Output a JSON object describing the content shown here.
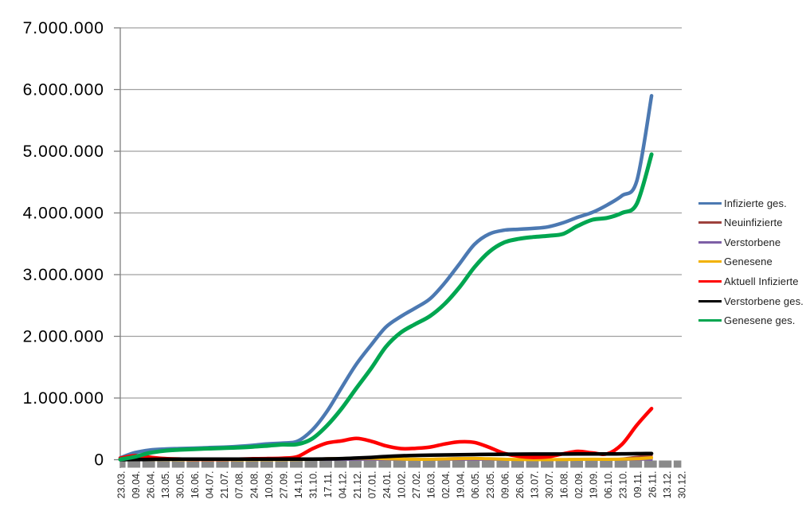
{
  "chart_data": {
    "type": "line",
    "title": "",
    "grid": true,
    "legend_position": "right",
    "ylim": [
      0,
      7000000
    ],
    "y_axis": {
      "labels": [
        "0",
        "1.000.000",
        "2.000.000",
        "3.000.000",
        "4.000.000",
        "5.000.000",
        "6.000.000",
        "7.000.000"
      ]
    },
    "categories": [
      "23.03.",
      "09.04.",
      "26.04.",
      "13.05.",
      "30.05.",
      "16.06.",
      "04.07.",
      "21.07.",
      "07.08.",
      "24.08.",
      "10.09.",
      "27.09.",
      "14.10.",
      "31.10.",
      "17.11.",
      "04.12.",
      "21.12.",
      "07.01.",
      "24.01.",
      "10.02.",
      "27.02.",
      "16.03.",
      "02.04.",
      "19.04.",
      "06.05.",
      "23.05.",
      "09.06.",
      "26.06.",
      "13.07.",
      "30.07.",
      "16.08.",
      "02.09.",
      "19.09.",
      "06.10.",
      "23.10.",
      "09.11.",
      "26.11.",
      "13.12.",
      "30.12."
    ],
    "series": [
      {
        "name": "Infizierte ges.",
        "color": "#4C79B2",
        "width": 4.5,
        "values": [
          31000,
          115000,
          157000,
          173000,
          181000,
          187000,
          196000,
          203000,
          215000,
          234000,
          257000,
          270000,
          300000,
          480000,
          780000,
          1170000,
          1550000,
          1860000,
          2150000,
          2320000,
          2460000,
          2610000,
          2870000,
          3180000,
          3490000,
          3660000,
          3720000,
          3735000,
          3750000,
          3775000,
          3840000,
          3930000,
          4010000,
          4130000,
          4280000,
          4520000,
          5900000,
          null,
          null
        ]
      },
      {
        "name": "Neuinfizierte",
        "color": "#9E413C",
        "width": 3,
        "values": [
          4000,
          4800,
          1800,
          900,
          500,
          350,
          400,
          550,
          1100,
          1500,
          1600,
          2100,
          5500,
          16000,
          21000,
          23000,
          26000,
          20000,
          14000,
          8500,
          8000,
          12000,
          20000,
          24000,
          18000,
          7500,
          3000,
          1200,
          1600,
          2600,
          5500,
          10500,
          8500,
          8000,
          17000,
          45000,
          66000,
          null,
          null
        ]
      },
      {
        "name": "Verstorbene",
        "color": "#7D5FA6",
        "width": 3,
        "values": [
          60,
          180,
          210,
          110,
          60,
          30,
          15,
          10,
          10,
          10,
          10,
          20,
          30,
          90,
          250,
          450,
          750,
          900,
          750,
          550,
          380,
          250,
          200,
          250,
          250,
          180,
          100,
          70,
          35,
          20,
          25,
          55,
          65,
          70,
          90,
          200,
          350,
          null,
          null
        ]
      },
      {
        "name": "Genesene",
        "color": "#F2B200",
        "width": 4,
        "values": [
          800,
          3200,
          3800,
          2000,
          900,
          450,
          350,
          350,
          600,
          900,
          1100,
          1500,
          2600,
          6500,
          14000,
          20000,
          23000,
          22000,
          17000,
          11000,
          7500,
          8000,
          13000,
          18000,
          21000,
          15000,
          8000,
          3200,
          1600,
          1900,
          3600,
          6500,
          8000,
          6500,
          9000,
          16000,
          32000,
          null,
          null
        ]
      },
      {
        "name": "Aktuell Infizierte",
        "color": "#FF0000",
        "width": 4.5,
        "values": [
          25000,
          66000,
          40000,
          19000,
          11000,
          7000,
          6000,
          7000,
          10000,
          15000,
          19000,
          25000,
          50000,
          175000,
          270000,
          305000,
          345000,
          300000,
          225000,
          180000,
          185000,
          205000,
          255000,
          290000,
          280000,
          200000,
          105000,
          55000,
          38000,
          48000,
          95000,
          135000,
          110000,
          95000,
          250000,
          560000,
          830000,
          null,
          null
        ]
      },
      {
        "name": "Verstorbene ges.",
        "color": "#000000",
        "width": 4.5,
        "values": [
          200,
          2200,
          5800,
          7800,
          8600,
          8900,
          9000,
          9100,
          9200,
          9300,
          9400,
          9500,
          9700,
          10400,
          13000,
          18000,
          27000,
          38000,
          52000,
          63000,
          70000,
          74000,
          77000,
          81000,
          84000,
          87000,
          89500,
          90500,
          91300,
          91700,
          92000,
          92500,
          93200,
          94100,
          95400,
          97500,
          101000,
          null,
          null
        ]
      },
      {
        "name": "Genesene ges.",
        "color": "#00A650",
        "width": 5,
        "values": [
          4000,
          48000,
          110000,
          144000,
          161000,
          171000,
          181000,
          189000,
          198000,
          210000,
          226000,
          245000,
          250000,
          340000,
          550000,
          830000,
          1160000,
          1480000,
          1830000,
          2060000,
          2200000,
          2330000,
          2530000,
          2800000,
          3120000,
          3370000,
          3520000,
          3580000,
          3610000,
          3630000,
          3660000,
          3790000,
          3890000,
          3920000,
          4000000,
          4150000,
          4950000,
          null,
          null
        ]
      }
    ],
    "colors": {
      "gridline": "#A0A0A0",
      "axis_line": "#808080",
      "tick_band": "#8A8A8A",
      "tick_band_gap": "#FFFFFF",
      "y_label_text": "#000000",
      "x_label_text": "#262626",
      "legend_text": "#1F1F1F",
      "background": "#FFFFFF"
    }
  }
}
